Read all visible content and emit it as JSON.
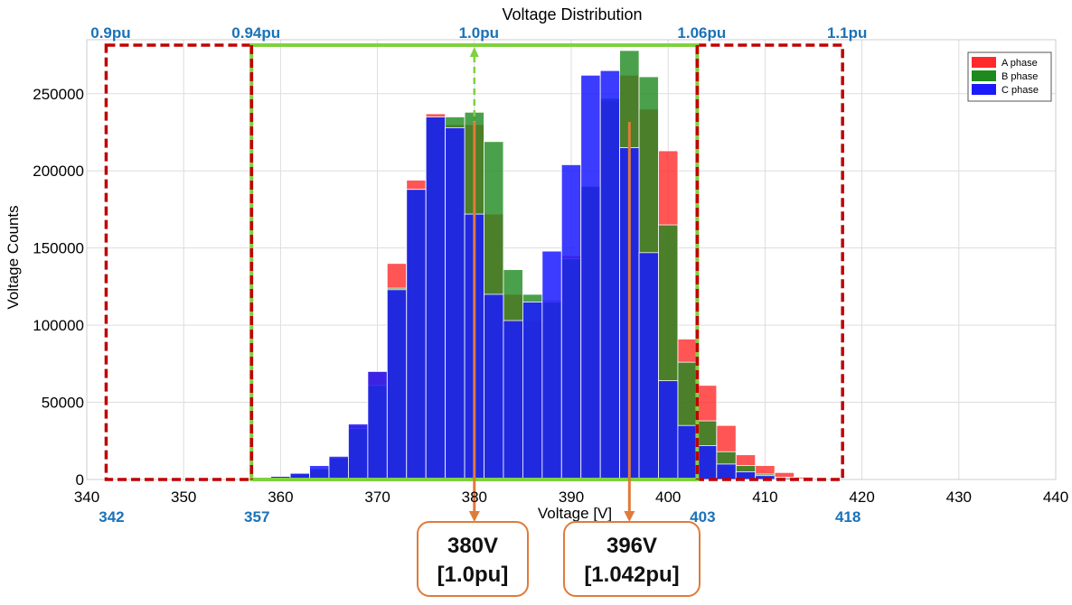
{
  "chart_data": {
    "type": "bar",
    "title": "Voltage Distribution",
    "xlabel": "Voltage [V]",
    "ylabel": "Voltage Counts",
    "xlim": [
      340,
      440
    ],
    "ylim": [
      0,
      285000
    ],
    "x_ticks": [
      340,
      350,
      360,
      370,
      380,
      390,
      400,
      410,
      420,
      430,
      440
    ],
    "y_ticks": [
      0,
      50000,
      100000,
      150000,
      200000,
      250000
    ],
    "y_tick_labels": [
      "0",
      "50000",
      "100000",
      "150000",
      "200000",
      "250000"
    ],
    "bin_width": 2,
    "bin_starts": [
      357,
      359,
      361,
      363,
      365,
      367,
      369,
      371,
      373,
      375,
      377,
      379,
      381,
      383,
      385,
      387,
      389,
      391,
      393,
      395,
      397,
      399,
      401,
      403,
      405,
      407,
      409,
      411,
      413
    ],
    "series": [
      {
        "name": "A phase",
        "color": "#ff2a2a",
        "values": [
          0,
          1000,
          3000,
          6000,
          14000,
          35000,
          70000,
          140000,
          194000,
          237000,
          230000,
          230000,
          172000,
          120000,
          103000,
          116000,
          145000,
          190000,
          245000,
          262000,
          240000,
          213000,
          91000,
          61000,
          35000,
          16000,
          9000,
          4500,
          1500
        ]
      },
      {
        "name": "B phase",
        "color": "#1e8a1e",
        "values": [
          1000,
          2000,
          4000,
          7000,
          14000,
          33000,
          61000,
          124000,
          188000,
          235000,
          235000,
          238000,
          219000,
          136000,
          120000,
          115000,
          143000,
          190000,
          247000,
          278000,
          261000,
          165000,
          76000,
          38000,
          18000,
          9000,
          3500,
          1500,
          500
        ]
      },
      {
        "name": "C phase",
        "color": "#1a1aff",
        "values": [
          1000,
          2000,
          4000,
          9000,
          15000,
          36000,
          70000,
          123000,
          188000,
          235000,
          228000,
          172000,
          120000,
          103000,
          115000,
          148000,
          204000,
          262000,
          265000,
          215000,
          147000,
          64000,
          35000,
          22000,
          10000,
          5000,
          2500,
          800,
          200
        ]
      }
    ],
    "legend": {
      "placement": "top-right",
      "entries": [
        "A phase",
        "B phase",
        "C phase"
      ]
    },
    "grid": true,
    "pu_markers": [
      {
        "label": "0.9pu",
        "voltage": 342,
        "voltage_label": "342"
      },
      {
        "label": "0.94pu",
        "voltage": 357,
        "voltage_label": "357"
      },
      {
        "label": "1.0pu",
        "voltage": 380,
        "voltage_label": ""
      },
      {
        "label": "1.06pu",
        "voltage": 403,
        "voltage_label": "403"
      },
      {
        "label": "1.1pu",
        "voltage": 418,
        "voltage_label": "418"
      }
    ],
    "annotations": [
      {
        "voltage": 380,
        "line1": "380V",
        "line2": "[1.0pu]"
      },
      {
        "voltage": 396,
        "line1": "396V",
        "line2": "[1.042pu]"
      }
    ]
  }
}
